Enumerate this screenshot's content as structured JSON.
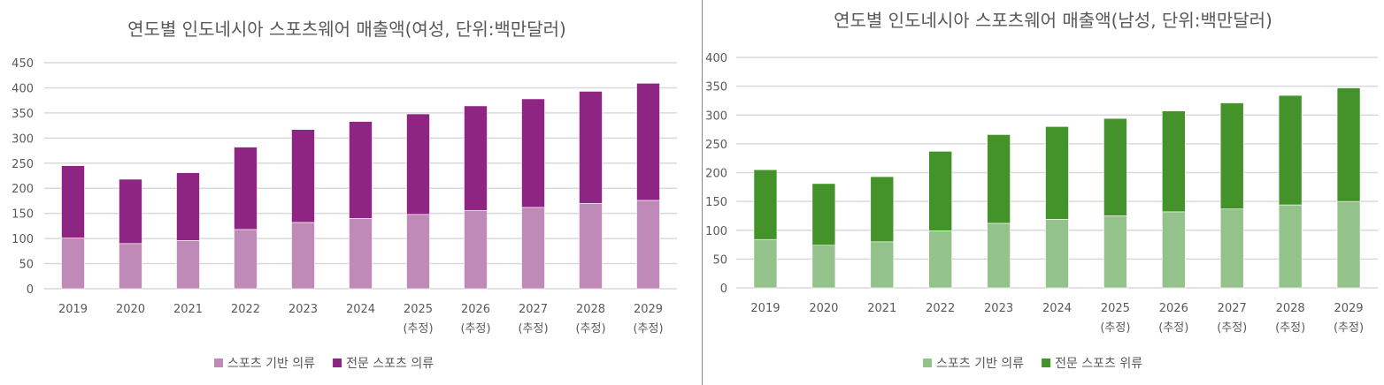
{
  "chart_data": [
    {
      "type": "bar",
      "stacked": true,
      "title": "연도별 인도네시아 스포츠웨어 매출액(여성, 단위:백만달러)",
      "categories": [
        "2019",
        "2020",
        "2021",
        "2022",
        "2023",
        "2024",
        "2025\n(추정)",
        "2026\n(추정)",
        "2027\n(추정)",
        "2028\n(추정)",
        "2029\n(추정)"
      ],
      "series": [
        {
          "name": "스포츠 기반 의류",
          "color": "#bf8ab7",
          "values": [
            101,
            90,
            96,
            118,
            132,
            140,
            148,
            156,
            162,
            170,
            176
          ]
        },
        {
          "name": "전문 스포츠 의류",
          "color": "#8e2582",
          "values": [
            144,
            128,
            135,
            164,
            185,
            193,
            200,
            208,
            216,
            223,
            233
          ]
        }
      ],
      "ylim": [
        0,
        450
      ],
      "yticks": [
        0,
        50,
        100,
        150,
        200,
        250,
        300,
        350,
        400,
        450
      ],
      "grid": true,
      "legend": "bottom"
    },
    {
      "type": "bar",
      "stacked": true,
      "title": "연도별 인도네시아 스포츠웨어 매출액(남성, 단위:백만달러)",
      "categories": [
        "2019",
        "2020",
        "2021",
        "2022",
        "2023",
        "2024",
        "2025\n(추정)",
        "2026\n(추정)",
        "2027\n(추정)",
        "2028\n(추정)",
        "2029\n(추정)"
      ],
      "series": [
        {
          "name": "스포츠 기반 의류",
          "color": "#93c28a",
          "values": [
            84,
            74,
            80,
            99,
            112,
            119,
            125,
            132,
            137,
            144,
            150
          ]
        },
        {
          "name": "전문 스포츠 위류",
          "color": "#43922a",
          "values": [
            121,
            107,
            113,
            138,
            154,
            161,
            169,
            175,
            184,
            190,
            197
          ]
        }
      ],
      "ylim": [
        0,
        400
      ],
      "yticks": [
        0,
        50,
        100,
        150,
        200,
        250,
        300,
        350,
        400
      ],
      "grid": true,
      "legend": "bottom"
    }
  ]
}
